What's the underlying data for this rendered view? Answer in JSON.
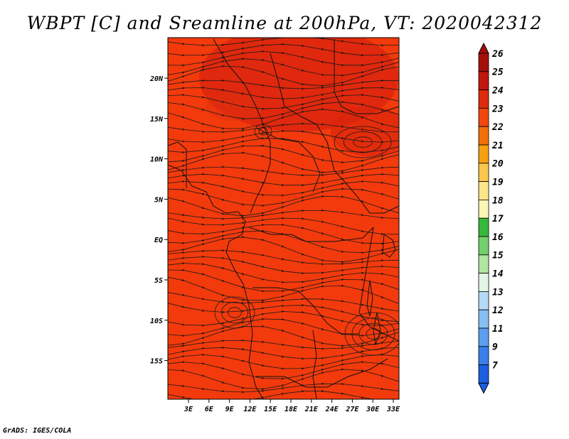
{
  "title": "WBPT [C] and Sreamline at 200hPa, VT: 2020042312",
  "credit": "GrADS: IGES/COLA",
  "map": {
    "lon_ticks": [
      "3E",
      "6E",
      "9E",
      "12E",
      "15E",
      "18E",
      "21E",
      "24E",
      "27E",
      "30E",
      "33E"
    ],
    "lat_ticks": [
      "20N",
      "15N",
      "10N",
      "5N",
      "EQ",
      "5S",
      "10S",
      "15S"
    ],
    "fill_color": "#f23a0c",
    "warm_color": "#d8230e"
  },
  "colorbar": {
    "labels": [
      "26",
      "25",
      "24",
      "23",
      "22",
      "21",
      "20",
      "19",
      "18",
      "17",
      "16",
      "15",
      "14",
      "13",
      "12",
      "11",
      "9",
      "7"
    ],
    "colors": [
      "#a50f0a",
      "#c0180c",
      "#dc2a0c",
      "#f2480c",
      "#f27008",
      "#f6a012",
      "#f9c84c",
      "#fbe68a",
      "#fcf6b6",
      "#35b93a",
      "#74d06c",
      "#b0e6a0",
      "#e2f6e6",
      "#b6d9f6",
      "#88bff2",
      "#5c9ef0",
      "#3a7fea",
      "#1c5fe0"
    ]
  }
}
